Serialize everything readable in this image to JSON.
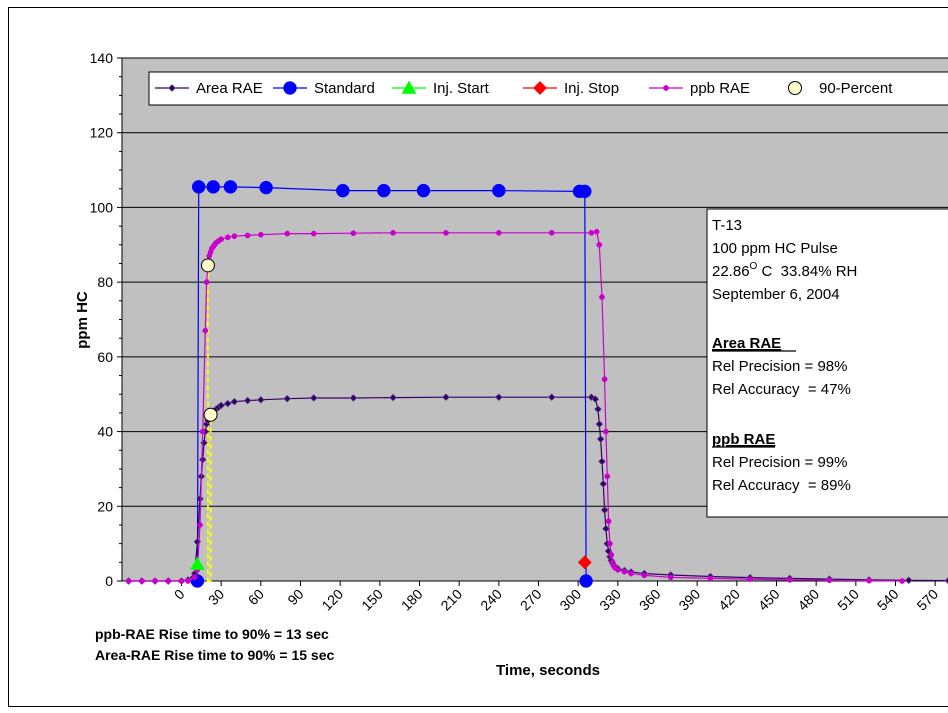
{
  "chart_data": {
    "type": "line",
    "xlabel": "Time, seconds",
    "ylabel": "ppm HC",
    "xlim": [
      -45,
      585
    ],
    "ylim": [
      0,
      140
    ],
    "x_ticks": [
      "0",
      "30",
      "60",
      "90",
      "120",
      "150",
      "180",
      "210",
      "240",
      "270",
      "300",
      "330",
      "360",
      "390",
      "420",
      "450",
      "480",
      "510",
      "540",
      "570"
    ],
    "y_ticks": [
      "0",
      "20",
      "40",
      "60",
      "80",
      "100",
      "120",
      "140"
    ],
    "grid": "horizontal",
    "legend_position": "top",
    "plot_background": "#c0c0c0",
    "series": [
      {
        "name": "Area RAE",
        "color": "#330066",
        "marker": "diamond",
        "x": [
          -40,
          -30,
          -20,
          -10,
          0,
          5,
          10,
          12,
          14,
          15,
          16,
          17,
          18,
          19,
          20,
          22,
          24,
          26,
          28,
          30,
          35,
          40,
          50,
          60,
          80,
          100,
          130,
          160,
          200,
          240,
          280,
          310,
          313,
          315,
          316,
          317,
          318,
          319,
          320,
          321,
          322,
          323,
          324,
          325,
          326,
          327,
          328,
          330,
          335,
          340,
          350,
          370,
          400,
          430,
          460,
          490,
          520,
          550,
          580
        ],
        "y": [
          0,
          0,
          0,
          0,
          0,
          0.3,
          2,
          10.5,
          22,
          28,
          32.5,
          37,
          40,
          42,
          43,
          44,
          45,
          46,
          46.5,
          47,
          47.5,
          48,
          48.3,
          48.5,
          48.8,
          49,
          49,
          49.1,
          49.2,
          49.2,
          49.2,
          49.2,
          48.7,
          46,
          42,
          38,
          32,
          26,
          19,
          14,
          10,
          8,
          6.5,
          5.5,
          4.8,
          4.2,
          3.8,
          3.3,
          2.8,
          2.4,
          2,
          1.6,
          1.2,
          0.9,
          0.7,
          0.5,
          0.3,
          0.2,
          0.1
        ]
      },
      {
        "name": "Standard",
        "color": "#0000ff",
        "marker": "circle",
        "x": [
          12,
          13,
          24,
          37,
          64,
          122,
          153,
          183,
          240,
          301,
          305,
          306
        ],
        "y": [
          0,
          105.5,
          105.5,
          105.5,
          105.3,
          104.5,
          104.5,
          104.5,
          104.5,
          104.3,
          104.3,
          0
        ]
      },
      {
        "name": "Inj. Start",
        "color": "#00ff00",
        "marker": "triangle",
        "x": [
          12
        ],
        "y": [
          4.5
        ]
      },
      {
        "name": "Inj. Stop",
        "color": "#ff0000",
        "marker": "diamond",
        "x": [
          305
        ],
        "y": [
          5
        ]
      },
      {
        "name": "ppb RAE",
        "color": "#cc00cc",
        "marker": "circle",
        "x": [
          -40,
          -30,
          -20,
          -10,
          0,
          5,
          10,
          12,
          14,
          16,
          18,
          19,
          20,
          21,
          22,
          23,
          24,
          25,
          26,
          28,
          30,
          35,
          40,
          50,
          60,
          80,
          100,
          130,
          160,
          200,
          240,
          280,
          310,
          314,
          316,
          318,
          320,
          321,
          322,
          323,
          324,
          325,
          326,
          327,
          328,
          330,
          335,
          340,
          350,
          370,
          400,
          430,
          460,
          490,
          520,
          545
        ],
        "y": [
          0,
          0,
          0,
          0,
          0,
          0,
          1,
          3,
          15,
          40,
          67,
          80,
          84.5,
          87,
          88,
          89,
          89.5,
          90,
          90.5,
          91,
          91.5,
          92,
          92.3,
          92.5,
          92.7,
          93,
          93,
          93.1,
          93.2,
          93.2,
          93.2,
          93.2,
          93.2,
          93.5,
          90,
          76,
          54,
          40,
          28,
          16,
          10,
          7,
          5,
          4,
          3.5,
          3,
          2.5,
          2,
          1.5,
          1,
          0.7,
          0.5,
          0.3,
          0.2,
          0.1,
          0
        ]
      },
      {
        "name": "90-Percent",
        "color": "#ffffcc",
        "marker": "circle",
        "x": [
          20,
          22
        ],
        "y": [
          84.5,
          44.5
        ]
      }
    ],
    "guide_lines": [
      {
        "color": "#ffff00",
        "x": [
          13,
          20,
          20
        ],
        "y": [
          0,
          0,
          84.5
        ]
      },
      {
        "color": "#ffff00",
        "x": [
          13,
          22,
          22
        ],
        "y": [
          0,
          0,
          44.5
        ]
      }
    ],
    "annotation": {
      "lines": [
        "T-13",
        "100 ppm HC Pulse",
        "22.86",
        "O",
        " C  33.84% RH",
        "September 6, 2004"
      ],
      "area_heading": "Area RAE",
      "area_precision": "Rel Precision = 98%",
      "area_accuracy": "Rel Accuracy  = 47%",
      "ppb_heading": "ppb RAE",
      "ppb_precision": "Rel Precision = 99%",
      "ppb_accuracy": "Rel Accuracy  = 89%"
    },
    "notes": [
      "ppb-RAE Rise time to 90% = 13 sec",
      "Area-RAE Rise time to 90% = 15 sec"
    ]
  }
}
